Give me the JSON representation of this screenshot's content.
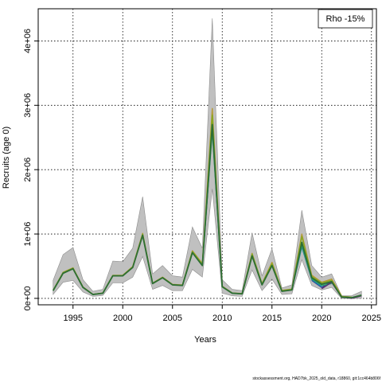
{
  "chart_data": {
    "type": "line",
    "xlabel": "Years",
    "ylabel": "Recruits (age 0)",
    "xlim": [
      1991.5,
      2025.5
    ],
    "ylim": [
      -100000,
      4500000
    ],
    "x_ticks": [
      1995,
      2000,
      2005,
      2010,
      2015,
      2020,
      2025
    ],
    "y_ticks": [
      0,
      1000000,
      2000000,
      3000000,
      4000000
    ],
    "y_tick_labels": [
      "0e+00",
      "1e+06",
      "2e+06",
      "3e+06",
      "4e+06"
    ],
    "grid": true,
    "legend": {
      "label": "Rho -15%",
      "placement": "top-right"
    },
    "footer": "stockassessment.org, HAD7bk_2025_old_data, r18860, git:1cc464b806f",
    "colors": {
      "band": "#c0c0c0",
      "band_edge": "#8c8c8c",
      "base": "#2e6e34",
      "retro": [
        "#86a821",
        "#b59a36",
        "#2a9e6e",
        "#1a7fb5",
        "#2d3a8c",
        "#5a2a6e"
      ]
    },
    "band": {
      "x": [
        1993,
        1994,
        1995,
        1996,
        1997,
        1998,
        1999,
        2000,
        2001,
        2002,
        2003,
        2004,
        2005,
        2006,
        2007,
        2008,
        2009,
        2010,
        2011,
        2012,
        2013,
        2014,
        2015,
        2016,
        2017,
        2018,
        2019,
        2020,
        2021,
        2022,
        2023,
        2024
      ],
      "lower": [
        60000,
        250000,
        280000,
        100000,
        30000,
        45000,
        240000,
        240000,
        330000,
        650000,
        140000,
        200000,
        120000,
        120000,
        450000,
        330000,
        1700000,
        80000,
        40000,
        30000,
        440000,
        120000,
        300000,
        60000,
        70000,
        600000,
        200000,
        130000,
        170000,
        0,
        0,
        0
      ],
      "upper": [
        280000,
        680000,
        790000,
        290000,
        110000,
        140000,
        580000,
        570000,
        780000,
        1580000,
        380000,
        510000,
        350000,
        330000,
        1110000,
        780000,
        4350000,
        290000,
        140000,
        120000,
        1020000,
        350000,
        770000,
        160000,
        210000,
        1370000,
        510000,
        330000,
        380000,
        40000,
        40000,
        110000
      ]
    },
    "series": [
      {
        "x": [
          1993,
          1994,
          1995,
          1996,
          1997,
          1998,
          1999,
          2000,
          2001,
          2002,
          2003,
          2004,
          2005,
          2006,
          2007,
          2008,
          2009,
          2010,
          2011,
          2012,
          2013,
          2014,
          2015,
          2016,
          2017,
          2018,
          2019,
          2020,
          2021,
          2022,
          2023,
          2024
        ],
        "values": [
          120000,
          390000,
          460000,
          170000,
          60000,
          80000,
          350000,
          350000,
          480000,
          980000,
          230000,
          320000,
          210000,
          200000,
          710000,
          510000,
          2700000,
          180000,
          80000,
          70000,
          660000,
          210000,
          510000,
          110000,
          130000,
          870000,
          320000,
          220000,
          260000,
          20000,
          10000,
          50000
        ]
      },
      {
        "x": [
          1993,
          1994,
          1995,
          1996,
          1997,
          1998,
          1999,
          2000,
          2001,
          2002,
          2003,
          2004,
          2005,
          2006,
          2007,
          2008,
          2009,
          2010,
          2011,
          2012,
          2013,
          2014,
          2015,
          2016,
          2017,
          2018,
          2019,
          2020,
          2021,
          2022,
          2023
        ],
        "values": [
          125000,
          400000,
          470000,
          175000,
          62000,
          82000,
          355000,
          355000,
          490000,
          1000000,
          235000,
          325000,
          215000,
          205000,
          730000,
          530000,
          2850000,
          185000,
          82000,
          72000,
          690000,
          225000,
          540000,
          120000,
          140000,
          960000,
          340000,
          240000,
          280000,
          30000,
          20000
        ]
      },
      {
        "x": [
          1993,
          1994,
          1995,
          1996,
          1997,
          1998,
          1999,
          2000,
          2001,
          2002,
          2003,
          2004,
          2005,
          2006,
          2007,
          2008,
          2009,
          2010,
          2011,
          2012,
          2013,
          2014,
          2015,
          2016,
          2017,
          2018,
          2019,
          2020,
          2021,
          2022
        ],
        "values": [
          128000,
          405000,
          475000,
          178000,
          63000,
          84000,
          358000,
          360000,
          495000,
          1010000,
          238000,
          330000,
          218000,
          208000,
          740000,
          540000,
          2950000,
          190000,
          85000,
          75000,
          700000,
          230000,
          560000,
          125000,
          145000,
          1000000,
          360000,
          250000,
          300000,
          40000
        ]
      },
      {
        "x": [
          1993,
          1994,
          1995,
          1996,
          1997,
          1998,
          1999,
          2000,
          2001,
          2002,
          2003,
          2004,
          2005,
          2006,
          2007,
          2008,
          2009,
          2010,
          2011,
          2012,
          2013,
          2014,
          2015,
          2016,
          2017,
          2018,
          2019,
          2020,
          2021
        ],
        "values": [
          122000,
          395000,
          465000,
          172000,
          61000,
          81000,
          352000,
          352000,
          485000,
          990000,
          232000,
          322000,
          212000,
          202000,
          720000,
          520000,
          2600000,
          182000,
          81000,
          71000,
          670000,
          215000,
          520000,
          115000,
          135000,
          820000,
          300000,
          200000,
          230000
        ]
      },
      {
        "x": [
          1993,
          1994,
          1995,
          1996,
          1997,
          1998,
          1999,
          2000,
          2001,
          2002,
          2003,
          2004,
          2005,
          2006,
          2007,
          2008,
          2009,
          2010,
          2011,
          2012,
          2013,
          2014,
          2015,
          2016,
          2017,
          2018,
          2019,
          2020
        ],
        "values": [
          121000,
          392000,
          462000,
          171000,
          60500,
          80500,
          351000,
          351000,
          482000,
          985000,
          231000,
          321000,
          211000,
          201000,
          715000,
          515000,
          2650000,
          181000,
          80500,
          70500,
          665000,
          212000,
          515000,
          112000,
          132000,
          800000,
          290000,
          180000
        ]
      },
      {
        "x": [
          2019,
          2020,
          2021,
          2022,
          2023
        ],
        "values": [
          280000,
          170000,
          270000,
          30000,
          20000
        ]
      },
      {
        "x": [
          2020,
          2021,
          2022,
          2023,
          2024
        ],
        "values": [
          150000,
          250000,
          20000,
          0,
          40000
        ]
      }
    ]
  }
}
